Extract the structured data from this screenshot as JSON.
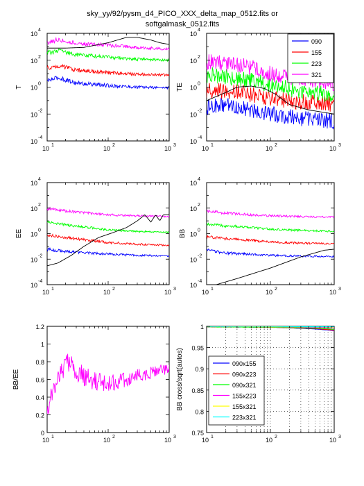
{
  "figure": {
    "title_line1": "sky_yy/92/pysm_d4_PICO_XXX_delta_map_0512.fits or",
    "title_line2": "softgalmask_0512.fits"
  },
  "colors": {
    "c090": "#0000ff",
    "c155": "#ff0000",
    "c223": "#00ff00",
    "c321": "#ff00ff",
    "model": "#000000",
    "x155x223": "#ffff00",
    "x155x321": "#ffcc00",
    "x223x321": "#00ffff"
  },
  "chart_data": [
    {
      "id": "T",
      "type": "line",
      "ylabel": "T",
      "xscale": "log",
      "yscale": "log",
      "xlim": [
        10,
        1000
      ],
      "ylim": [
        0.0001,
        10000
      ],
      "xticks": [
        {
          "base": "10",
          "exp": "1"
        },
        {
          "base": "10",
          "exp": "2"
        },
        {
          "base": "10",
          "exp": "3"
        }
      ],
      "yticks": [
        {
          "base": "10",
          "exp": "-4"
        },
        {
          "base": "10",
          "exp": "-2"
        },
        {
          "base": "10",
          "exp": "0"
        },
        {
          "base": "10",
          "exp": "2"
        },
        {
          "base": "10",
          "exp": "4"
        }
      ],
      "series": [
        {
          "color_key": "c090",
          "x": [
            10,
            15,
            30,
            100,
            300,
            1000
          ],
          "y": [
            3,
            5,
            2,
            1.3,
            1,
            0.9
          ],
          "noise": 0.18
        },
        {
          "color_key": "c155",
          "x": [
            10,
            15,
            30,
            100,
            300,
            1000
          ],
          "y": [
            25,
            40,
            18,
            12,
            9,
            8
          ],
          "noise": 0.18
        },
        {
          "color_key": "c223",
          "x": [
            10,
            15,
            30,
            100,
            300,
            1000
          ],
          "y": [
            350,
            500,
            260,
            170,
            120,
            100
          ],
          "noise": 0.18
        },
        {
          "color_key": "c321",
          "x": [
            10,
            15,
            30,
            100,
            300,
            1000
          ],
          "y": [
            2000,
            3500,
            1800,
            1300,
            900,
            650
          ],
          "noise": 0.18
        },
        {
          "color_key": "model",
          "x": [
            10,
            20,
            40,
            100,
            200,
            300,
            500,
            700,
            1000
          ],
          "y": [
            800,
            800,
            900,
            2000,
            5000,
            5000,
            3200,
            2000,
            1500
          ],
          "noise": 0
        }
      ]
    },
    {
      "id": "TE",
      "type": "line",
      "ylabel": "TE",
      "xscale": "log",
      "yscale": "log",
      "xlim": [
        10,
        1000
      ],
      "ylim": [
        0.0001,
        10000
      ],
      "xticks": [
        {
          "base": "10",
          "exp": "1"
        },
        {
          "base": "10",
          "exp": "2"
        },
        {
          "base": "10",
          "exp": "3"
        }
      ],
      "yticks": [
        {
          "base": "10",
          "exp": "-4"
        },
        {
          "base": "10",
          "exp": "-2"
        },
        {
          "base": "10",
          "exp": "0"
        },
        {
          "base": "10",
          "exp": "2"
        },
        {
          "base": "10",
          "exp": "4"
        }
      ],
      "legend": {
        "position": "top-right",
        "entries": [
          {
            "label": "090",
            "color_key": "c090"
          },
          {
            "label": "155",
            "color_key": "c155"
          },
          {
            "label": "223",
            "color_key": "c223"
          },
          {
            "label": "321",
            "color_key": "c321"
          }
        ]
      },
      "series": [
        {
          "color_key": "c090",
          "x": [
            10,
            20,
            50,
            100,
            300,
            1000
          ],
          "y": [
            0.03,
            0.05,
            0.02,
            0.01,
            0.005,
            0.003
          ],
          "noise": 0.6
        },
        {
          "color_key": "c155",
          "x": [
            10,
            20,
            50,
            100,
            300,
            1000
          ],
          "y": [
            0.6,
            0.5,
            0.3,
            0.15,
            0.08,
            0.05
          ],
          "noise": 0.6
        },
        {
          "color_key": "c223",
          "x": [
            10,
            20,
            50,
            100,
            300,
            1000
          ],
          "y": [
            8,
            6,
            3,
            1.5,
            0.5,
            0.3
          ],
          "noise": 0.6
        },
        {
          "color_key": "c321",
          "x": [
            10,
            20,
            50,
            100,
            300,
            1000
          ],
          "y": [
            80,
            60,
            30,
            10,
            4,
            2
          ],
          "noise": 0.6
        },
        {
          "color_key": "model",
          "x": [
            10,
            20,
            30,
            50,
            80,
            120,
            200,
            400,
            1000
          ],
          "y": [
            0.1,
            0.4,
            1,
            1.2,
            0.8,
            0.3,
            0.05,
            0.02,
            0.01
          ],
          "noise": 0
        }
      ]
    },
    {
      "id": "EE",
      "type": "line",
      "ylabel": "EE",
      "xscale": "log",
      "yscale": "log",
      "xlim": [
        10,
        1000
      ],
      "ylim": [
        0.0001,
        10000
      ],
      "xticks": [
        {
          "base": "10",
          "exp": "1"
        },
        {
          "base": "10",
          "exp": "2"
        },
        {
          "base": "10",
          "exp": "3"
        }
      ],
      "yticks": [
        {
          "base": "10",
          "exp": "-4"
        },
        {
          "base": "10",
          "exp": "-2"
        },
        {
          "base": "10",
          "exp": "0"
        },
        {
          "base": "10",
          "exp": "2"
        },
        {
          "base": "10",
          "exp": "4"
        }
      ],
      "series": [
        {
          "color_key": "c090",
          "x": [
            10,
            20,
            50,
            100,
            300,
            1000
          ],
          "y": [
            0.06,
            0.04,
            0.03,
            0.025,
            0.02,
            0.018
          ],
          "noise": 0.12
        },
        {
          "color_key": "c155",
          "x": [
            10,
            20,
            50,
            100,
            300,
            1000
          ],
          "y": [
            0.8,
            0.5,
            0.3,
            0.2,
            0.15,
            0.12
          ],
          "noise": 0.12
        },
        {
          "color_key": "c223",
          "x": [
            10,
            20,
            50,
            100,
            300,
            1000
          ],
          "y": [
            8,
            5,
            3,
            2,
            1.5,
            1.3
          ],
          "noise": 0.12
        },
        {
          "color_key": "c321",
          "x": [
            10,
            20,
            50,
            100,
            300,
            1000
          ],
          "y": [
            90,
            60,
            40,
            30,
            25,
            22
          ],
          "noise": 0.12
        },
        {
          "color_key": "model",
          "x": [
            10,
            15,
            25,
            40,
            70,
            120,
            200,
            300,
            400,
            500,
            600,
            700,
            800,
            1000
          ],
          "y": [
            0.003,
            0.005,
            0.02,
            0.1,
            0.5,
            1.2,
            3,
            10,
            30,
            8,
            30,
            10,
            30,
            30
          ],
          "noise": 0
        }
      ]
    },
    {
      "id": "BB",
      "type": "line",
      "ylabel": "BB",
      "xscale": "log",
      "yscale": "log",
      "xlim": [
        10,
        1000
      ],
      "ylim": [
        0.0001,
        10000
      ],
      "xticks": [
        {
          "base": "10",
          "exp": "1"
        },
        {
          "base": "10",
          "exp": "2"
        },
        {
          "base": "10",
          "exp": "3"
        }
      ],
      "yticks": [
        {
          "base": "10",
          "exp": "-4"
        },
        {
          "base": "10",
          "exp": "-2"
        },
        {
          "base": "10",
          "exp": "0"
        },
        {
          "base": "10",
          "exp": "2"
        },
        {
          "base": "10",
          "exp": "4"
        }
      ],
      "series": [
        {
          "color_key": "c090",
          "x": [
            10,
            20,
            50,
            100,
            300,
            1000
          ],
          "y": [
            0.05,
            0.03,
            0.025,
            0.02,
            0.017,
            0.016
          ],
          "noise": 0.12
        },
        {
          "color_key": "c155",
          "x": [
            10,
            20,
            50,
            100,
            300,
            1000
          ],
          "y": [
            0.6,
            0.4,
            0.3,
            0.22,
            0.18,
            0.16
          ],
          "noise": 0.12
        },
        {
          "color_key": "c223",
          "x": [
            10,
            20,
            50,
            100,
            300,
            1000
          ],
          "y": [
            6,
            4,
            3,
            2.2,
            1.8,
            1.5
          ],
          "noise": 0.12
        },
        {
          "color_key": "c321",
          "x": [
            10,
            20,
            50,
            100,
            300,
            1000
          ],
          "y": [
            60,
            40,
            30,
            25,
            22,
            20
          ],
          "noise": 0.12
        },
        {
          "color_key": "model",
          "x": [
            10,
            30,
            100,
            300,
            700,
            1000
          ],
          "y": [
            6e-05,
            0.0003,
            0.002,
            0.015,
            0.05,
            0.06
          ],
          "noise": 0
        }
      ]
    },
    {
      "id": "ratio",
      "type": "line",
      "ylabel": "BB/EE",
      "xscale": "log",
      "yscale": "linear",
      "xlim": [
        10,
        1000
      ],
      "ylim": [
        0,
        1.2
      ],
      "xticks": [
        {
          "base": "10",
          "exp": "1"
        },
        {
          "base": "10",
          "exp": "2"
        },
        {
          "base": "10",
          "exp": "3"
        }
      ],
      "yticks": [
        {
          "value": 0,
          "label": "0"
        },
        {
          "value": 0.2,
          "label": "0.2"
        },
        {
          "value": 0.4,
          "label": "0.4"
        },
        {
          "value": 0.6,
          "label": "0.6"
        },
        {
          "value": 0.8,
          "label": "0.8"
        },
        {
          "value": 1,
          "label": "1"
        },
        {
          "value": 1.2,
          "label": "1.2"
        }
      ],
      "series": [
        {
          "color_key": "c321",
          "x": [
            10,
            15,
            20,
            30,
            50,
            100,
            200,
            500,
            1000
          ],
          "y": [
            0.3,
            0.6,
            0.8,
            0.7,
            0.6,
            0.55,
            0.6,
            0.68,
            0.72
          ],
          "noise_abs": 0.14
        }
      ]
    },
    {
      "id": "corr",
      "type": "line",
      "ylabel": "BB cross/sqrt(autos)",
      "xscale": "log",
      "yscale": "linear",
      "xlim": [
        10,
        1000
      ],
      "ylim": [
        0.75,
        1.0
      ],
      "grid": true,
      "xticks": [
        {
          "base": "10",
          "exp": "1"
        },
        {
          "base": "10",
          "exp": "2"
        },
        {
          "base": "10",
          "exp": "3"
        }
      ],
      "yticks": [
        {
          "value": 0.75,
          "label": "0.75"
        },
        {
          "value": 0.8,
          "label": "0.8"
        },
        {
          "value": 0.85,
          "label": "0.85"
        },
        {
          "value": 0.9,
          "label": "0.9"
        },
        {
          "value": 0.95,
          "label": "0.95"
        },
        {
          "value": 1,
          "label": "1"
        }
      ],
      "legend": {
        "position": "bottom-left",
        "entries": [
          {
            "label": "090x155",
            "color_key": "c090"
          },
          {
            "label": "090x223",
            "color_key": "c155"
          },
          {
            "label": "090x321",
            "color_key": "c223"
          },
          {
            "label": "155x223",
            "color_key": "c321"
          },
          {
            "label": "155x321",
            "color_key": "x155x223"
          },
          {
            "label": "223x321",
            "color_key": "x223x321"
          }
        ]
      },
      "series": [
        {
          "color_key": "c090",
          "x": [
            10,
            100,
            500,
            1000
          ],
          "y": [
            0.999,
            0.998,
            0.994,
            0.99
          ],
          "noise_abs": 0.0005
        },
        {
          "color_key": "c155",
          "x": [
            10,
            100,
            500,
            1000
          ],
          "y": [
            0.999,
            0.998,
            0.995,
            0.991
          ],
          "noise_abs": 0.0005
        },
        {
          "color_key": "c223",
          "x": [
            10,
            100,
            500,
            1000
          ],
          "y": [
            0.999,
            0.998,
            0.996,
            0.993
          ],
          "noise_abs": 0.0005
        },
        {
          "color_key": "c321",
          "x": [
            10,
            100,
            500,
            1000
          ],
          "y": [
            1.0,
            0.999,
            0.998,
            0.996
          ],
          "noise_abs": 0.0004
        },
        {
          "color_key": "x155x223",
          "x": [
            10,
            100,
            500,
            1000
          ],
          "y": [
            1.0,
            0.999,
            0.999,
            0.998
          ],
          "noise_abs": 0.0003
        },
        {
          "color_key": "x223x321",
          "x": [
            10,
            100,
            500,
            1000
          ],
          "y": [
            1.0,
            1.0,
            0.999,
            0.999
          ],
          "noise_abs": 0.0002
        }
      ]
    }
  ]
}
